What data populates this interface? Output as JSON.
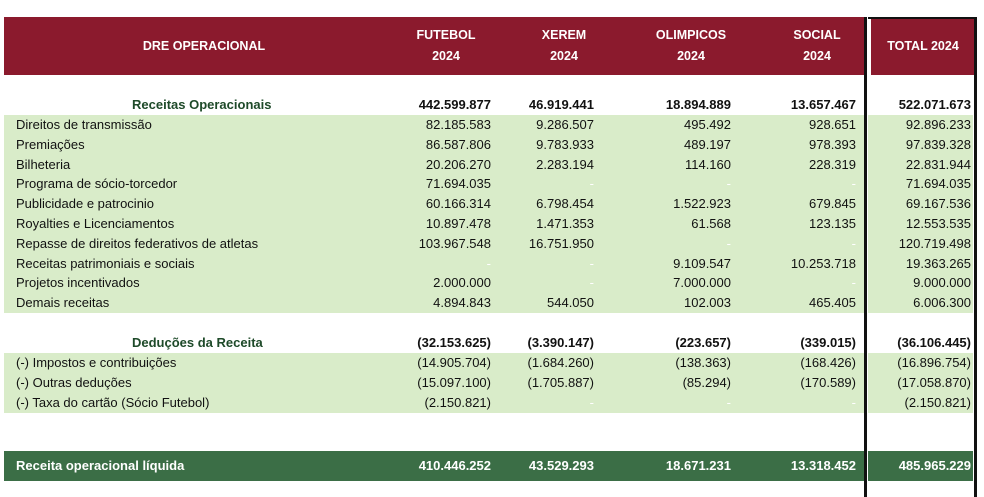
{
  "header": {
    "label": "DRE OPERACIONAL",
    "columns": [
      {
        "line1": "FUTEBOL",
        "line2": "2024"
      },
      {
        "line1": "XEREM",
        "line2": "2024"
      },
      {
        "line1": "OLIMPICOS",
        "line2": "2024"
      },
      {
        "line1": "SOCIAL",
        "line2": "2024"
      }
    ],
    "total": "TOTAL 2024"
  },
  "receitas": {
    "title": "Receitas Operacionais",
    "values": [
      "442.599.877",
      "46.919.441",
      "18.894.889",
      "13.657.467",
      "522.071.673"
    ],
    "rows": [
      {
        "label": "Direitos de transmissão",
        "values": [
          "82.185.583",
          "9.286.507",
          "495.492",
          "928.651",
          "92.896.233"
        ]
      },
      {
        "label": "Premiações",
        "values": [
          "86.587.806",
          "9.783.933",
          "489.197",
          "978.393",
          "97.839.328"
        ]
      },
      {
        "label": "Bilheteria",
        "values": [
          "20.206.270",
          "2.283.194",
          "114.160",
          "228.319",
          "22.831.944"
        ]
      },
      {
        "label": "Programa de sócio-torcedor",
        "values": [
          "71.694.035",
          "-",
          "-",
          "-",
          "71.694.035"
        ]
      },
      {
        "label": "Publicidade e patrocinio",
        "values": [
          "60.166.314",
          "6.798.454",
          "1.522.923",
          "679.845",
          "69.167.536"
        ]
      },
      {
        "label": "Royalties e Licenciamentos",
        "values": [
          "10.897.478",
          "1.471.353",
          "61.568",
          "123.135",
          "12.553.535"
        ]
      },
      {
        "label": "Repasse de direitos federativos de atletas",
        "values": [
          "103.967.548",
          "16.751.950",
          "-",
          "-",
          "120.719.498"
        ]
      },
      {
        "label": "Receitas patrimoniais e sociais",
        "values": [
          "-",
          "-",
          "9.109.547",
          "10.253.718",
          "19.363.265"
        ]
      },
      {
        "label": "Projetos incentivados",
        "values": [
          "2.000.000",
          "-",
          "7.000.000",
          "-",
          "9.000.000"
        ]
      },
      {
        "label": "Demais receitas",
        "values": [
          "4.894.843",
          "544.050",
          "102.003",
          "465.405",
          "6.006.300"
        ]
      }
    ]
  },
  "deducoes": {
    "title": "Deduções da  Receita",
    "values": [
      "(32.153.625)",
      "(3.390.147)",
      "(223.657)",
      "(339.015)",
      "(36.106.445)"
    ],
    "rows": [
      {
        "label": "(-) Impostos e contribuições",
        "values": [
          "(14.905.704)",
          "(1.684.260)",
          "(138.363)",
          "(168.426)",
          "(16.896.754)"
        ]
      },
      {
        "label": "(-) Outras deduções",
        "values": [
          "(15.097.100)",
          "(1.705.887)",
          "(85.294)",
          "(170.589)",
          "(17.058.870)"
        ]
      },
      {
        "label": "(-) Taxa do cartão (Sócio Futebol)",
        "values": [
          "(2.150.821)",
          "-",
          "-",
          "-",
          "(2.150.821)"
        ]
      }
    ]
  },
  "liquida": {
    "label": "Receita operacional líquida",
    "values": [
      "410.446.252",
      "43.529.293",
      "18.671.231",
      "13.318.452",
      "485.965.229"
    ]
  },
  "colors": {
    "header": "#8b1a2d",
    "band": "#d9ecc9",
    "net": "#3b6e46",
    "section_text": "#1e4a29"
  }
}
